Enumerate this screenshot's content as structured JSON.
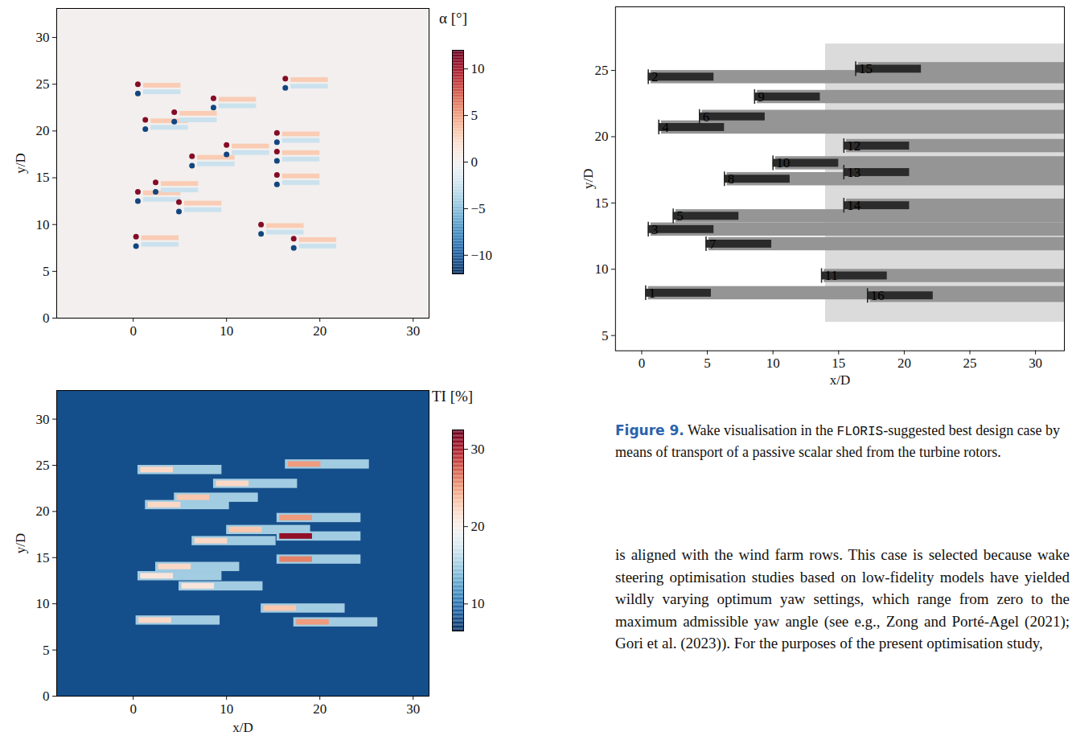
{
  "chart_data": [
    {
      "type": "heatmap",
      "ylabel": "y/D",
      "xlim": [
        -8.2,
        31.7
      ],
      "ylim": [
        0,
        33.1
      ],
      "xticks": [
        0,
        10,
        20,
        30
      ],
      "yticks": [
        0,
        5,
        10,
        15,
        20,
        25,
        30
      ],
      "colorbar": {
        "label": "α [°]",
        "range": [
          -12,
          12
        ],
        "ticks": [
          -10,
          -5,
          0,
          5,
          10
        ]
      },
      "background": 0,
      "cells": [
        [
          0.9,
          4.9,
          8.3,
          8.8,
          3
        ],
        [
          0.9,
          4.9,
          7.6,
          8.1,
          -2.5
        ],
        [
          1.1,
          5.1,
          24.6,
          25.1,
          3
        ],
        [
          1.1,
          5.1,
          23.9,
          24.4,
          -2.5
        ],
        [
          1.1,
          5.1,
          13.1,
          13.6,
          3
        ],
        [
          1.1,
          5.1,
          12.4,
          12.9,
          -2.5
        ],
        [
          1.9,
          5.9,
          20.8,
          21.3,
          3
        ],
        [
          1.9,
          5.9,
          20.1,
          20.6,
          -2.5
        ],
        [
          3.0,
          7.0,
          14.1,
          14.6,
          3
        ],
        [
          3.0,
          7.0,
          13.4,
          13.9,
          -2.5
        ],
        [
          5.0,
          9.0,
          21.6,
          22.1,
          3
        ],
        [
          5.0,
          9.0,
          20.9,
          21.4,
          -2.5
        ],
        [
          5.5,
          9.5,
          12.0,
          12.5,
          3
        ],
        [
          5.5,
          9.5,
          11.3,
          11.8,
          -2.5
        ],
        [
          6.9,
          10.9,
          16.9,
          17.4,
          3
        ],
        [
          6.9,
          10.9,
          16.2,
          16.7,
          -2.5
        ],
        [
          9.2,
          13.2,
          23.1,
          23.6,
          3
        ],
        [
          9.2,
          13.2,
          22.4,
          22.9,
          -2.5
        ],
        [
          10.6,
          14.6,
          18.1,
          18.6,
          3
        ],
        [
          10.6,
          14.6,
          17.4,
          17.9,
          -2.5
        ],
        [
          14.3,
          18.3,
          9.6,
          10.1,
          3
        ],
        [
          14.3,
          18.3,
          8.9,
          9.4,
          -2.5
        ],
        [
          16.0,
          20.0,
          19.4,
          19.9,
          3
        ],
        [
          16.0,
          20.0,
          18.7,
          19.2,
          -2.5
        ],
        [
          16.0,
          20.0,
          17.4,
          17.9,
          3
        ],
        [
          16.0,
          20.0,
          16.7,
          17.2,
          -2.5
        ],
        [
          16.0,
          20.0,
          14.9,
          15.4,
          3
        ],
        [
          16.0,
          20.0,
          14.2,
          14.7,
          -2.5
        ],
        [
          16.9,
          20.9,
          25.2,
          25.7,
          3
        ],
        [
          16.9,
          20.9,
          24.5,
          25.0,
          -2.5
        ],
        [
          17.8,
          21.8,
          8.1,
          8.6,
          3
        ],
        [
          17.8,
          21.8,
          7.4,
          7.9,
          -2.5
        ]
      ],
      "points": [
        {
          "x": 0.3,
          "y": 8.7,
          "value": 11
        },
        {
          "x": 0.3,
          "y": 7.7,
          "value": -11
        },
        {
          "x": 0.5,
          "y": 25.0,
          "value": 11
        },
        {
          "x": 0.5,
          "y": 24.0,
          "value": -11
        },
        {
          "x": 0.5,
          "y": 13.5,
          "value": 11
        },
        {
          "x": 0.5,
          "y": 12.5,
          "value": -11
        },
        {
          "x": 1.3,
          "y": 21.2,
          "value": 11
        },
        {
          "x": 1.3,
          "y": 20.2,
          "value": -11
        },
        {
          "x": 2.4,
          "y": 14.5,
          "value": 11
        },
        {
          "x": 2.4,
          "y": 13.5,
          "value": -11
        },
        {
          "x": 4.4,
          "y": 22.0,
          "value": 11
        },
        {
          "x": 4.4,
          "y": 21.0,
          "value": -11
        },
        {
          "x": 4.9,
          "y": 12.4,
          "value": 11
        },
        {
          "x": 4.9,
          "y": 11.4,
          "value": -11
        },
        {
          "x": 6.3,
          "y": 17.3,
          "value": 11
        },
        {
          "x": 6.3,
          "y": 16.3,
          "value": -11
        },
        {
          "x": 8.6,
          "y": 23.5,
          "value": 11
        },
        {
          "x": 8.6,
          "y": 22.5,
          "value": -11
        },
        {
          "x": 10.0,
          "y": 18.5,
          "value": 11
        },
        {
          "x": 10.0,
          "y": 17.5,
          "value": -11
        },
        {
          "x": 13.7,
          "y": 10.0,
          "value": 11
        },
        {
          "x": 13.7,
          "y": 9.0,
          "value": -11
        },
        {
          "x": 15.4,
          "y": 19.8,
          "value": 11
        },
        {
          "x": 15.4,
          "y": 18.8,
          "value": -11
        },
        {
          "x": 15.4,
          "y": 17.8,
          "value": 11
        },
        {
          "x": 15.4,
          "y": 16.8,
          "value": -11
        },
        {
          "x": 15.4,
          "y": 15.3,
          "value": 11
        },
        {
          "x": 15.4,
          "y": 14.3,
          "value": -11
        },
        {
          "x": 16.3,
          "y": 25.6,
          "value": 11
        },
        {
          "x": 16.3,
          "y": 24.6,
          "value": -11
        },
        {
          "x": 17.2,
          "y": 8.5,
          "value": 11
        },
        {
          "x": 17.2,
          "y": 7.5,
          "value": -11
        }
      ]
    },
    {
      "type": "heatmap",
      "xlabel": "x/D",
      "ylabel": "y/D",
      "xlim": [
        -8.2,
        31.7
      ],
      "ylim": [
        0,
        33.1
      ],
      "xticks": [
        0,
        10,
        20,
        30
      ],
      "yticks": [
        0,
        5,
        10,
        15,
        20,
        25,
        30
      ],
      "colorbar": {
        "label": "TI [%]",
        "range": [
          6.5,
          32.5
        ],
        "ticks": [
          10,
          20,
          30
        ]
      },
      "background": 8,
      "cells": [
        [
          0.3,
          9.3,
          7.7,
          8.7,
          15
        ],
        [
          0.5,
          9.5,
          24.0,
          25.0,
          15
        ],
        [
          0.5,
          9.5,
          12.5,
          13.5,
          15
        ],
        [
          1.3,
          10.3,
          20.2,
          21.2,
          15
        ],
        [
          2.4,
          11.4,
          13.5,
          14.5,
          15
        ],
        [
          4.4,
          13.4,
          21.0,
          22.0,
          15
        ],
        [
          4.9,
          13.9,
          11.4,
          12.4,
          15
        ],
        [
          6.3,
          15.3,
          16.3,
          17.3,
          15
        ],
        [
          8.6,
          17.6,
          22.5,
          23.5,
          15
        ],
        [
          10.0,
          19.0,
          17.5,
          18.5,
          15
        ],
        [
          13.7,
          22.7,
          9.0,
          10.0,
          15
        ],
        [
          15.4,
          24.4,
          18.8,
          19.8,
          15
        ],
        [
          15.4,
          24.4,
          16.8,
          17.8,
          15
        ],
        [
          15.4,
          24.4,
          14.3,
          15.3,
          15
        ],
        [
          16.3,
          25.3,
          24.6,
          25.6,
          15
        ],
        [
          17.2,
          26.2,
          7.5,
          8.5,
          15
        ],
        [
          0.6,
          4.1,
          7.9,
          8.5,
          22
        ],
        [
          0.8,
          4.3,
          24.2,
          24.8,
          22
        ],
        [
          0.8,
          4.3,
          12.7,
          13.3,
          21
        ],
        [
          1.6,
          5.1,
          20.4,
          21.0,
          22
        ],
        [
          2.7,
          6.2,
          13.7,
          14.3,
          22
        ],
        [
          4.7,
          8.2,
          21.2,
          21.8,
          23
        ],
        [
          5.2,
          8.7,
          11.6,
          12.2,
          21
        ],
        [
          6.6,
          10.1,
          16.5,
          17.1,
          22
        ],
        [
          8.9,
          12.4,
          22.7,
          23.3,
          22
        ],
        [
          10.3,
          13.8,
          17.7,
          18.3,
          23
        ],
        [
          14.0,
          17.5,
          9.2,
          9.8,
          23
        ],
        [
          15.7,
          19.2,
          19.0,
          19.6,
          25
        ],
        [
          15.7,
          19.2,
          17.0,
          17.6,
          31
        ],
        [
          15.7,
          19.2,
          14.5,
          15.1,
          26
        ],
        [
          16.6,
          20.1,
          24.8,
          25.4,
          25
        ],
        [
          17.5,
          21.0,
          7.7,
          8.3,
          25
        ]
      ]
    },
    {
      "type": "heatmap",
      "xlabel": "x/D",
      "ylabel": "y/D",
      "xlim": [
        -2,
        32.2
      ],
      "ylim": [
        3.85,
        29.8
      ],
      "xticks": [
        0,
        5,
        10,
        15,
        20,
        25,
        30
      ],
      "yticks": [
        5,
        10,
        15,
        20,
        25
      ],
      "color": "#2b2b2b",
      "background": 0,
      "cells": [
        [
          14,
          32.2,
          6,
          27,
          0.12
        ],
        [
          0.5,
          32.2,
          7.7,
          8.7,
          0.35
        ],
        [
          0.7,
          32.2,
          24.0,
          25.0,
          0.35
        ],
        [
          0.7,
          32.2,
          12.5,
          13.5,
          0.35
        ],
        [
          1.5,
          32.2,
          20.2,
          21.2,
          0.35
        ],
        [
          2.6,
          32.2,
          13.5,
          14.5,
          0.35
        ],
        [
          4.6,
          32.2,
          21.0,
          22.0,
          0.35
        ],
        [
          5.1,
          32.2,
          11.4,
          12.4,
          0.35
        ],
        [
          6.5,
          32.2,
          16.3,
          17.3,
          0.35
        ],
        [
          8.8,
          32.2,
          22.5,
          23.5,
          0.35
        ],
        [
          10.2,
          32.2,
          17.5,
          18.5,
          0.35
        ],
        [
          13.9,
          32.2,
          9.0,
          10.0,
          0.35
        ],
        [
          15.6,
          32.2,
          18.8,
          19.8,
          0.35
        ],
        [
          15.6,
          32.2,
          16.8,
          17.8,
          0.35
        ],
        [
          15.6,
          32.2,
          14.3,
          15.3,
          0.35
        ],
        [
          16.5,
          32.2,
          24.6,
          25.6,
          0.35
        ],
        [
          17.4,
          32.2,
          7.5,
          8.5,
          0.35
        ],
        [
          0.3,
          5.3,
          7.9,
          8.5,
          0.7
        ],
        [
          0.5,
          5.5,
          24.2,
          24.8,
          0.7
        ],
        [
          0.5,
          5.5,
          12.7,
          13.3,
          0.7
        ],
        [
          1.3,
          6.3,
          20.4,
          21.0,
          0.7
        ],
        [
          2.4,
          7.4,
          13.7,
          14.3,
          0.7
        ],
        [
          4.4,
          9.4,
          21.2,
          21.8,
          0.7
        ],
        [
          4.9,
          9.9,
          11.6,
          12.2,
          0.7
        ],
        [
          6.3,
          11.3,
          16.5,
          17.1,
          0.7
        ],
        [
          8.6,
          13.6,
          22.7,
          23.3,
          0.7
        ],
        [
          10.0,
          15.0,
          17.7,
          18.3,
          0.7
        ],
        [
          13.7,
          18.7,
          9.2,
          9.8,
          0.7
        ],
        [
          15.4,
          20.4,
          19.0,
          19.6,
          0.7
        ],
        [
          15.4,
          20.4,
          17.0,
          17.6,
          0.7
        ],
        [
          15.4,
          20.4,
          14.5,
          15.1,
          0.7
        ],
        [
          16.3,
          21.3,
          24.8,
          25.4,
          0.7
        ],
        [
          17.2,
          22.2,
          7.7,
          8.3,
          0.7
        ]
      ],
      "turbines": [
        {
          "label": "1",
          "x": 0.3,
          "y": 8.2
        },
        {
          "label": "2",
          "x": 0.5,
          "y": 24.5
        },
        {
          "label": "3",
          "x": 0.5,
          "y": 13.0
        },
        {
          "label": "4",
          "x": 1.3,
          "y": 20.7
        },
        {
          "label": "5",
          "x": 2.4,
          "y": 14.0
        },
        {
          "label": "6",
          "x": 4.4,
          "y": 21.5
        },
        {
          "label": "7",
          "x": 4.9,
          "y": 11.9
        },
        {
          "label": "8",
          "x": 6.3,
          "y": 16.8
        },
        {
          "label": "9",
          "x": 8.6,
          "y": 23.0
        },
        {
          "label": "10",
          "x": 10.0,
          "y": 18.0
        },
        {
          "label": "11",
          "x": 13.7,
          "y": 9.5
        },
        {
          "label": "12",
          "x": 15.4,
          "y": 19.3
        },
        {
          "label": "13",
          "x": 15.4,
          "y": 17.3
        },
        {
          "label": "14",
          "x": 15.4,
          "y": 14.8
        },
        {
          "label": "15",
          "x": 16.3,
          "y": 25.1
        },
        {
          "label": "16",
          "x": 17.2,
          "y": 8.0
        }
      ]
    }
  ],
  "caption": {
    "label": "Figure 9.",
    "text_parts": [
      "Wake visualisation in the ",
      "FLORIS",
      "-suggested best design case by means of transport of a passive scalar shed from the turbine rotors."
    ]
  },
  "body_text": "is aligned with the wind farm rows. This case is selected because wake steering optimisation studies based on low-fidelity models have yielded wildly varying optimum yaw settings, which range from zero to the maximum admissible yaw angle (see e.g., Zong and Porté-Agel (2021); Gori et al. (2023)). For the purposes of the present optimisation study,"
}
